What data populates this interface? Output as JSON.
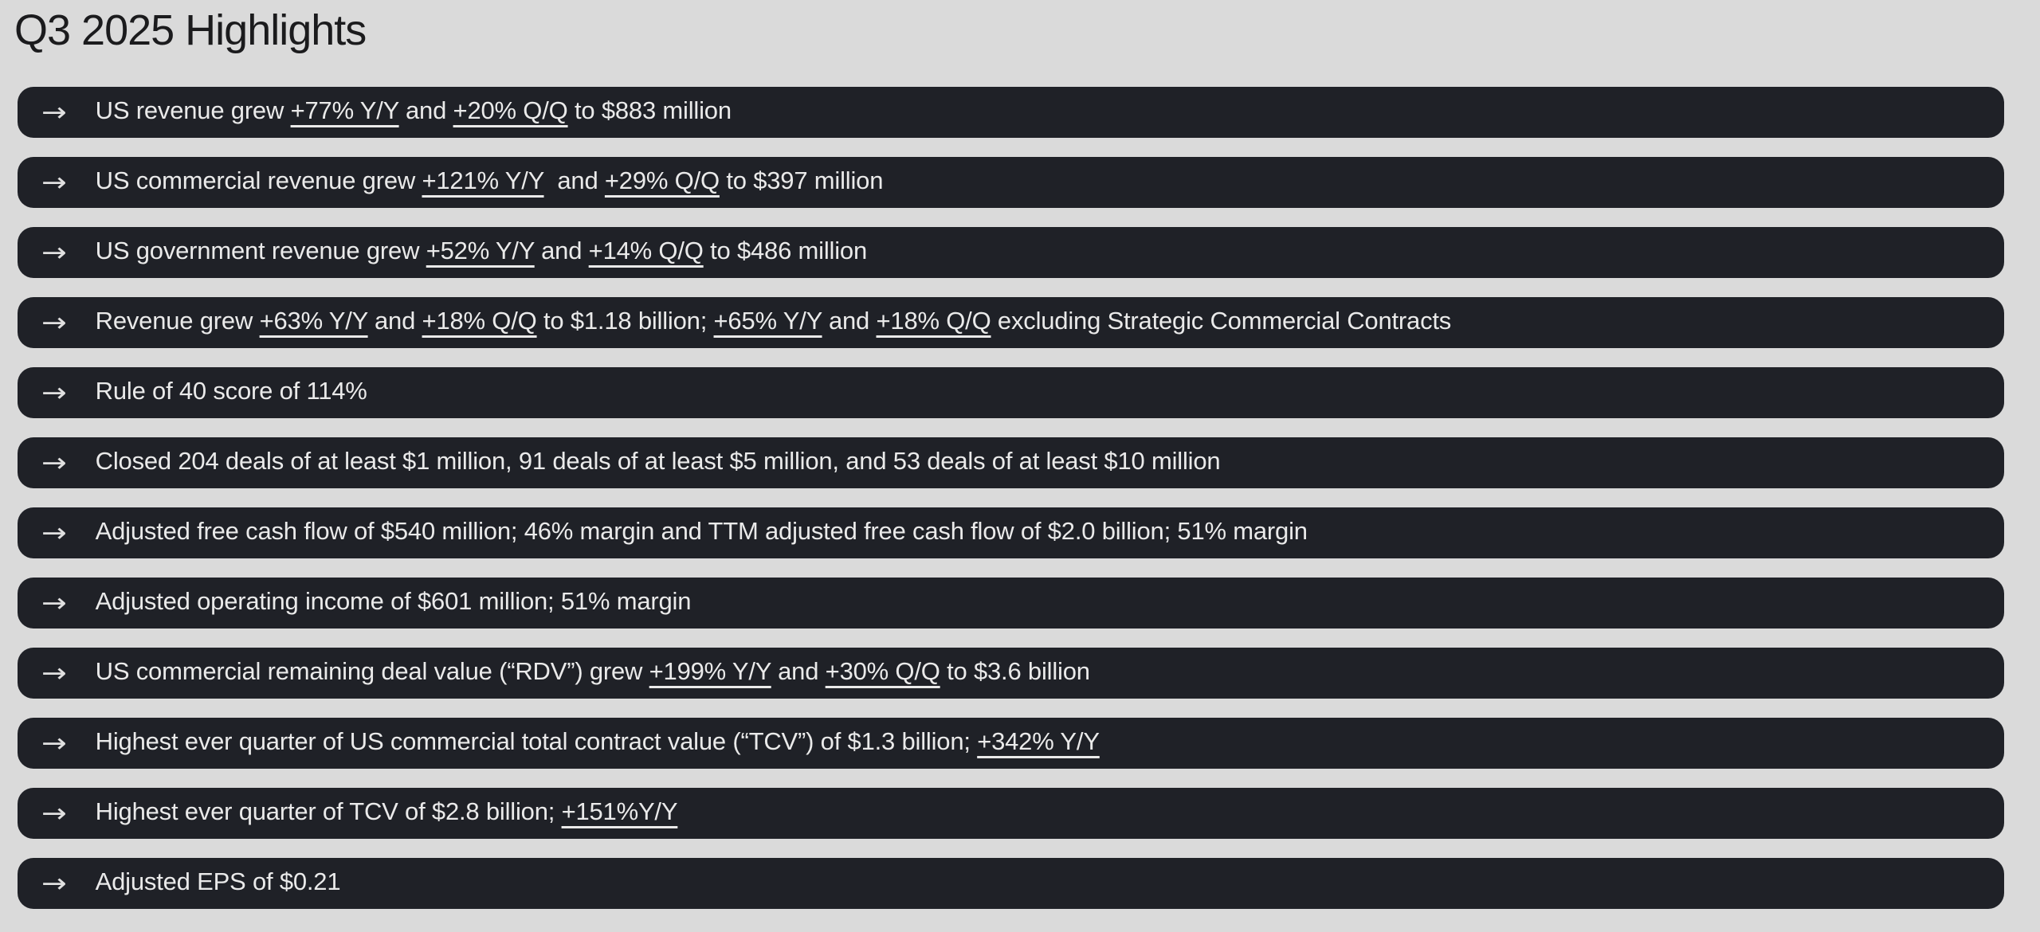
{
  "page": {
    "title": "Q3 2025 Highlights"
  },
  "colors": {
    "background": "#dadada",
    "bar": "#1f2127",
    "text": "#eaeaea",
    "arrow": "#e0e0e0",
    "title": "#1b1b1d"
  },
  "icons": {
    "arrow_right": "→"
  },
  "highlights": [
    {
      "segments": [
        {
          "text": "US revenue grew "
        },
        {
          "text": "+77% Y/Y",
          "underline": true
        },
        {
          "text": " and "
        },
        {
          "text": "+20% Q/Q",
          "underline": true
        },
        {
          "text": " to $883 million"
        }
      ]
    },
    {
      "segments": [
        {
          "text": "US commercial revenue grew "
        },
        {
          "text": "+121% Y/Y",
          "underline": true
        },
        {
          "text": "  and "
        },
        {
          "text": "+29% Q/Q",
          "underline": true
        },
        {
          "text": " to $397 million"
        }
      ]
    },
    {
      "segments": [
        {
          "text": "US government revenue grew "
        },
        {
          "text": "+52% Y/Y",
          "underline": true
        },
        {
          "text": " and "
        },
        {
          "text": "+14% Q/Q",
          "underline": true
        },
        {
          "text": " to $486 million"
        }
      ]
    },
    {
      "segments": [
        {
          "text": "Revenue grew "
        },
        {
          "text": "+63% Y/Y",
          "underline": true
        },
        {
          "text": " and "
        },
        {
          "text": "+18% Q/Q",
          "underline": true
        },
        {
          "text": " to $1.18 billion; "
        },
        {
          "text": "+65% Y/Y",
          "underline": true
        },
        {
          "text": " and "
        },
        {
          "text": "+18% Q/Q",
          "underline": true
        },
        {
          "text": " excluding Strategic Commercial Contracts"
        }
      ]
    },
    {
      "segments": [
        {
          "text": "Rule of 40 score of 114%"
        }
      ]
    },
    {
      "segments": [
        {
          "text": "Closed 204 deals of at least $1 million, 91 deals of at least $5 million, and 53 deals of at least $10 million"
        }
      ]
    },
    {
      "segments": [
        {
          "text": "Adjusted free cash flow of $540 million; 46% margin and TTM adjusted free cash flow of $2.0 billion; 51% margin"
        }
      ]
    },
    {
      "segments": [
        {
          "text": "Adjusted operating income of $601 million; 51% margin"
        }
      ]
    },
    {
      "segments": [
        {
          "text": "US commercial remaining deal value (“RDV”) grew "
        },
        {
          "text": "+199% Y/Y",
          "underline": true
        },
        {
          "text": " and "
        },
        {
          "text": "+30% Q/Q",
          "underline": true
        },
        {
          "text": " to $3.6 billion"
        }
      ]
    },
    {
      "segments": [
        {
          "text": "Highest ever quarter of US commercial total contract value (“TCV”) of $1.3 billion; "
        },
        {
          "text": "+342% Y/Y",
          "underline": true
        }
      ]
    },
    {
      "segments": [
        {
          "text": "Highest ever quarter of TCV of $2.8 billion; "
        },
        {
          "text": "+151%Y/Y",
          "underline": true
        }
      ]
    },
    {
      "segments": [
        {
          "text": "Adjusted EPS of $0.21"
        }
      ]
    }
  ]
}
